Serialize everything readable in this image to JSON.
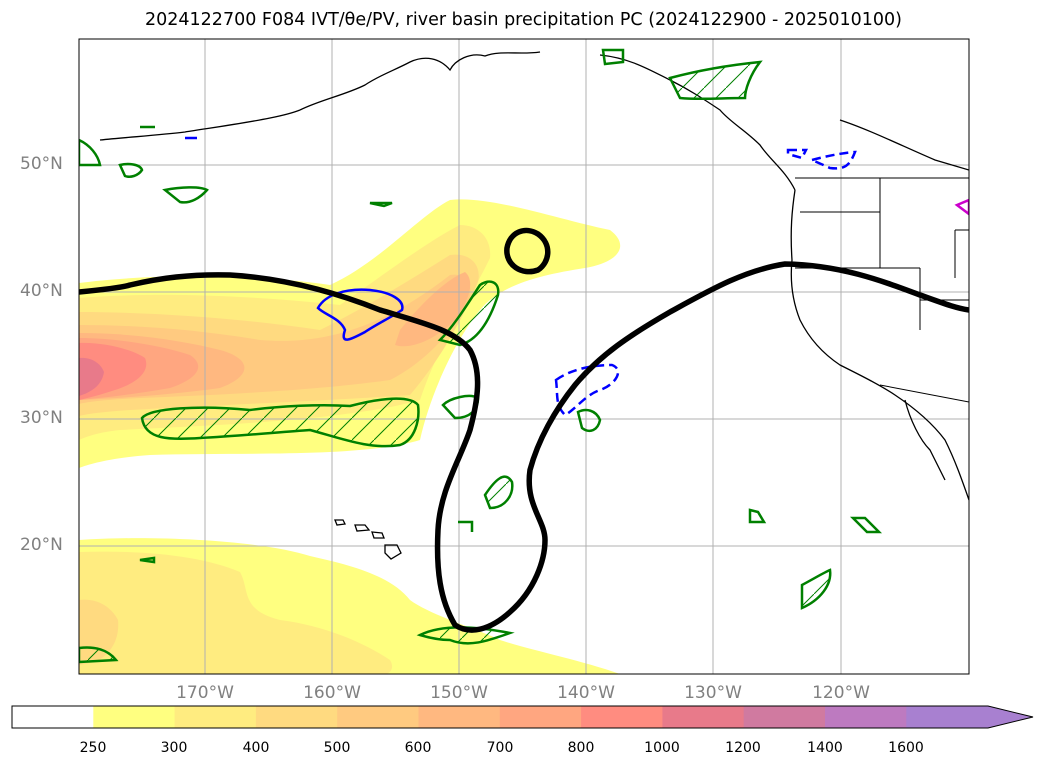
{
  "title": "2024122700 F084 IVT/θe/PV, river basin precipitation PC (2024122900 - 2025010100)",
  "lat_labels": [
    "50°N",
    "40°N",
    "30°N",
    "20°N"
  ],
  "lon_labels": [
    "170°W",
    "160°W",
    "150°W",
    "140°W",
    "130°W",
    "120°W"
  ],
  "colorbar": {
    "ticks": [
      "250",
      "300",
      "400",
      "500",
      "600",
      "700",
      "800",
      "1000",
      "1200",
      "1400",
      "1600"
    ],
    "colors": [
      "#ffffff",
      "#ffff80",
      "#ffec80",
      "#ffda80",
      "#ffca80",
      "#ffb880",
      "#ffa680",
      "#ff8c80",
      "#e87a8a",
      "#d07aa0",
      "#bd7ac0",
      "#a880d0"
    ]
  },
  "colors": {
    "pv_contour": "#000000",
    "positive_anomaly": "#008000",
    "negative_anomaly": "#0000ff",
    "coastline": "#000000",
    "gridline": "#b0b0b0",
    "axis_label": "#808080"
  }
}
